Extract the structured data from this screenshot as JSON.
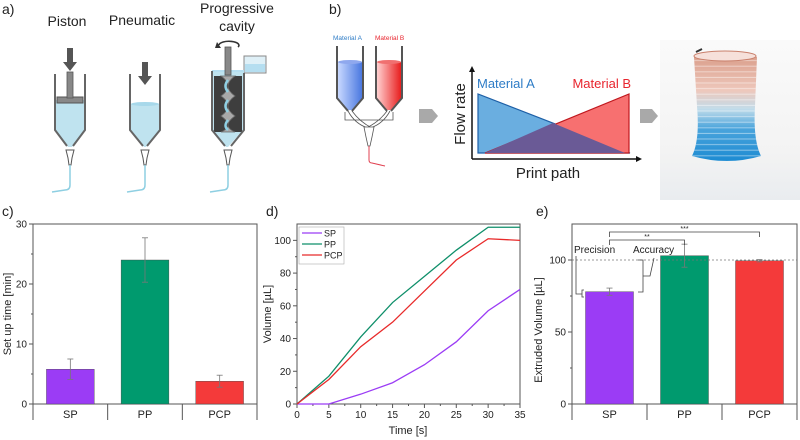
{
  "panels": {
    "a": {
      "label": "a)",
      "titles": [
        "Piston",
        "Pneumatic",
        "Progressive",
        "cavity"
      ],
      "icons": [
        "piston-syringe-icon",
        "pneumatic-syringe-icon",
        "progressive-cavity-pump-icon"
      ]
    },
    "b": {
      "label": "b)",
      "mat_a": "Material A",
      "mat_b": "Material B",
      "flow_ylabel": "Flow rate",
      "flow_xlabel": "Print path",
      "colors": {
        "a": "#2e7cc6",
        "b": "#e8252e",
        "a_fill": "#6aaee0",
        "b_fill": "#f77070",
        "overlap": "#6a5a96"
      },
      "photo": "gradient-printed-cylinder-photo"
    }
  },
  "chart_data": [
    {
      "id": "c",
      "panel_label": "c)",
      "type": "bar",
      "title": "",
      "xlabel": "",
      "ylabel": "Set up time [min]",
      "categories": [
        "SP",
        "PP",
        "PCP"
      ],
      "values": [
        5.8,
        24.0,
        3.8
      ],
      "errors": [
        1.7,
        3.7,
        1.0
      ],
      "colors": [
        "#9b3cf5",
        "#009a6e",
        "#f43a3a"
      ],
      "ylim": [
        0,
        30
      ],
      "yticks": [
        0,
        10,
        20,
        30
      ],
      "grid": false
    },
    {
      "id": "d",
      "panel_label": "d)",
      "type": "line",
      "title": "",
      "xlabel": "Time [s]",
      "ylabel": "Volume [µL]",
      "x": [
        0,
        5,
        10,
        15,
        20,
        25,
        30,
        35
      ],
      "series": [
        {
          "name": "SP",
          "color": "#9b3cf5",
          "values": [
            0,
            0,
            6,
            13,
            24,
            38,
            57,
            70
          ]
        },
        {
          "name": "PP",
          "color": "#0f8f6a",
          "values": [
            0,
            17,
            41,
            62,
            78,
            94,
            108,
            108
          ]
        },
        {
          "name": "PCP",
          "color": "#e82a2a",
          "values": [
            0,
            15,
            35,
            50,
            69,
            88,
            101,
            100
          ]
        }
      ],
      "xlim": [
        0,
        35
      ],
      "ylim": [
        0,
        110
      ],
      "xticks": [
        0,
        5,
        10,
        15,
        20,
        25,
        30,
        35
      ],
      "yticks": [
        0,
        20,
        40,
        60,
        80,
        100
      ],
      "legend": "top-left",
      "grid": false
    },
    {
      "id": "e",
      "panel_label": "e)",
      "type": "bar",
      "title": "",
      "xlabel": "",
      "ylabel": "Extruded Volume [µL]",
      "categories": [
        "SP",
        "PP",
        "PCP"
      ],
      "values": [
        78,
        103,
        99.5
      ],
      "errors": [
        2.5,
        8,
        0.8
      ],
      "colors": [
        "#9b3cf5",
        "#009a6e",
        "#f43a3a"
      ],
      "ylim": [
        0,
        125
      ],
      "yticks": [
        0,
        50,
        100
      ],
      "reference_line": 100,
      "annotations": {
        "precision": "Precision",
        "accuracy": "Accuracy",
        "sig_sp_pp": "**",
        "sig_sp_pcp": "***"
      },
      "grid": false
    }
  ]
}
